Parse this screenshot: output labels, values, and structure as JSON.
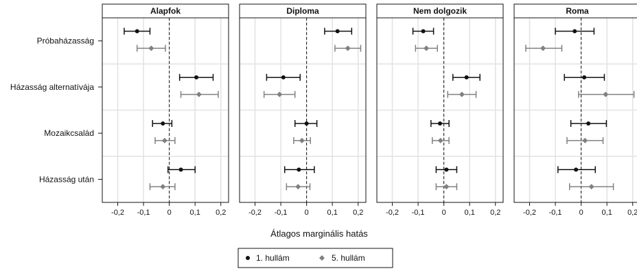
{
  "chart_data": {
    "type": "dot-errorbar",
    "xlabel": "Átlagos marginális hatás",
    "xlim": [
      -0.26,
      0.23
    ],
    "xticks": [
      -0.2,
      -0.1,
      0,
      0.1,
      0.2
    ],
    "xtick_labels": [
      "-0,2",
      "-0,1",
      "0",
      "0,1",
      "0,2"
    ],
    "reference_line": 0,
    "categories": [
      "Próbaházasság",
      "Házasság alternatívája",
      "Mozaikcsalád",
      "Házasság után"
    ],
    "legend": {
      "position": "bottom-center",
      "entries": [
        {
          "label": "1. hullám",
          "color": "#111111",
          "marker": "circle"
        },
        {
          "label": "5. hullám",
          "color": "#808080",
          "marker": "diamond"
        }
      ]
    },
    "panels": [
      {
        "title": "Alapfok",
        "series": [
          {
            "name": "1. hullám",
            "estimate": [
              -0.125,
              0.105,
              -0.025,
              0.045
            ],
            "lower": [
              -0.175,
              0.04,
              -0.065,
              -0.005
            ],
            "upper": [
              -0.075,
              0.17,
              0.01,
              0.1
            ]
          },
          {
            "name": "5. hullám",
            "estimate": [
              -0.07,
              0.115,
              -0.018,
              -0.025
            ],
            "lower": [
              -0.125,
              0.045,
              -0.055,
              -0.075
            ],
            "upper": [
              -0.015,
              0.19,
              0.022,
              0.022
            ]
          }
        ]
      },
      {
        "title": "Diploma",
        "series": [
          {
            "name": "1. hullám",
            "estimate": [
              0.12,
              -0.09,
              0.0,
              -0.03
            ],
            "lower": [
              0.07,
              -0.155,
              -0.045,
              -0.085
            ],
            "upper": [
              0.175,
              -0.025,
              0.04,
              0.03
            ]
          },
          {
            "name": "5. hullám",
            "estimate": [
              0.16,
              -0.105,
              -0.018,
              -0.033
            ],
            "lower": [
              0.11,
              -0.165,
              -0.05,
              -0.078
            ],
            "upper": [
              0.21,
              -0.045,
              0.015,
              0.013
            ]
          }
        ]
      },
      {
        "title": "Nem dolgozik",
        "series": [
          {
            "name": "1. hullám",
            "estimate": [
              -0.08,
              0.088,
              -0.015,
              0.01
            ],
            "lower": [
              -0.12,
              0.035,
              -0.05,
              -0.03
            ],
            "upper": [
              -0.04,
              0.14,
              0.02,
              0.05
            ]
          },
          {
            "name": "5. hullám",
            "estimate": [
              -0.068,
              0.07,
              -0.013,
              0.01
            ],
            "lower": [
              -0.11,
              0.015,
              -0.045,
              -0.03
            ],
            "upper": [
              -0.025,
              0.125,
              0.02,
              0.05
            ]
          }
        ]
      },
      {
        "title": "Roma",
        "series": [
          {
            "name": "1. hullám",
            "estimate": [
              -0.025,
              0.012,
              0.028,
              -0.02
            ],
            "lower": [
              -0.1,
              -0.065,
              -0.04,
              -0.09
            ],
            "upper": [
              0.05,
              0.09,
              0.098,
              0.055
            ]
          },
          {
            "name": "5. hullám",
            "estimate": [
              -0.148,
              0.095,
              0.015,
              0.04
            ],
            "lower": [
              -0.215,
              -0.01,
              -0.055,
              -0.045
            ],
            "upper": [
              -0.075,
              0.205,
              0.085,
              0.125
            ]
          }
        ]
      }
    ]
  }
}
